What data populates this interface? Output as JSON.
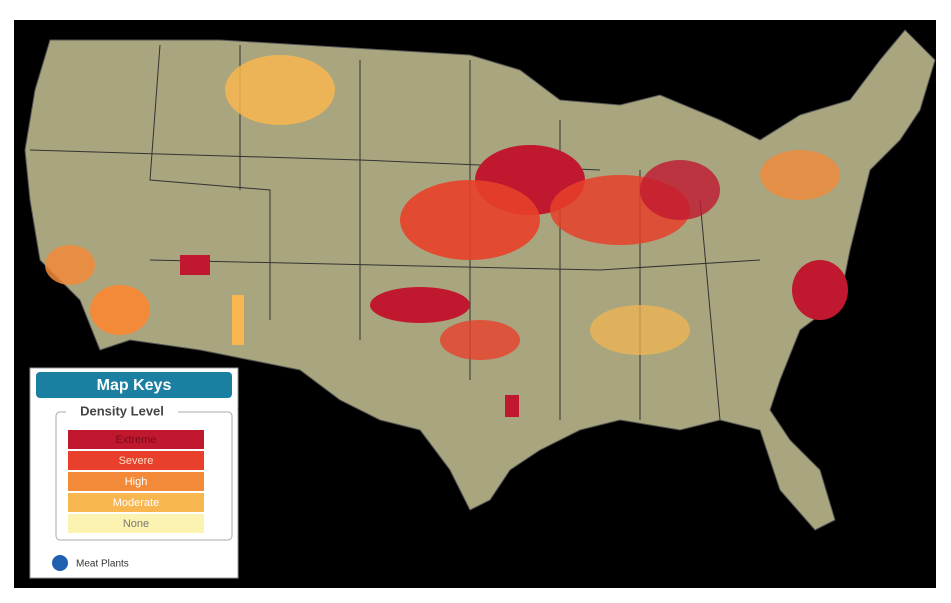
{
  "legend": {
    "title": "Map Keys",
    "group_title": "Density Level",
    "levels": [
      "Extreme",
      "Severe",
      "High",
      "Moderate",
      "None"
    ],
    "marker_label": "Meat Plants"
  }
}
